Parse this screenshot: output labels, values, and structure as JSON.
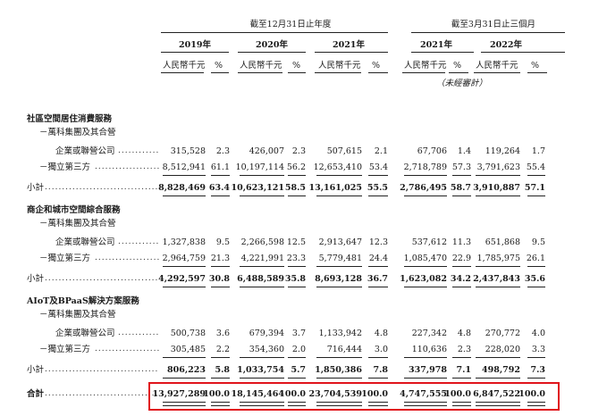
{
  "header": {
    "group_year": "截至12月31日止年度",
    "group_q": "截至3月31日止三個月",
    "years": [
      "2019年",
      "2020年",
      "2021年",
      "2021年",
      "2022年"
    ],
    "unit_rmb": "人民幣千元",
    "unit_pct": "%",
    "unaudited": "（未經審計）"
  },
  "sections": [
    {
      "title": "社區空間居住消費服務",
      "sub_label": "－萬科集團及其合營",
      "sub_label2": "企業或聯營公司",
      "row1": [
        "315,528",
        "2.3",
        "426,007",
        "2.3",
        "507,615",
        "2.1",
        "67,706",
        "1.4",
        "119,264",
        "1.7"
      ],
      "third_label": "－獨立第三方",
      "row2": [
        "8,512,941",
        "61.1",
        "10,197,114",
        "56.2",
        "12,653,410",
        "53.4",
        "2,718,789",
        "57.3",
        "3,791,623",
        "55.4"
      ],
      "subtotal_label": "小計",
      "subtotal": [
        "8,828,469",
        "63.4",
        "10,623,121",
        "58.5",
        "13,161,025",
        "55.5",
        "2,786,495",
        "58.7",
        "3,910,887",
        "57.1"
      ]
    },
    {
      "title": "商企和城市空間綜合服務",
      "sub_label": "－萬科集團及其合營",
      "sub_label2": "企業或聯營公司",
      "row1": [
        "1,327,838",
        "9.5",
        "2,266,598",
        "12.5",
        "2,913,647",
        "12.3",
        "537,612",
        "11.3",
        "651,868",
        "9.5"
      ],
      "third_label": "－獨立第三方",
      "row2": [
        "2,964,759",
        "21.3",
        "4,221,991",
        "23.3",
        "5,779,481",
        "24.4",
        "1,085,470",
        "22.9",
        "1,785,975",
        "26.1"
      ],
      "subtotal_label": "小計",
      "subtotal": [
        "4,292,597",
        "30.8",
        "6,488,589",
        "35.8",
        "8,693,128",
        "36.7",
        "1,623,082",
        "34.2",
        "2,437,843",
        "35.6"
      ]
    },
    {
      "title": "AIoT及BPaaS解決方案服務",
      "sub_label": "－萬科集團及其合營",
      "sub_label2": "企業或聯營公司",
      "row1": [
        "500,738",
        "3.6",
        "679,394",
        "3.7",
        "1,133,942",
        "4.8",
        "227,342",
        "4.8",
        "270,772",
        "4.0"
      ],
      "third_label": "－獨立第三方",
      "row2": [
        "305,485",
        "2.2",
        "354,360",
        "2.0",
        "716,444",
        "3.0",
        "110,636",
        "2.3",
        "228,020",
        "3.3"
      ],
      "subtotal_label": "小計",
      "subtotal": [
        "806,223",
        "5.8",
        "1,033,754",
        "5.7",
        "1,850,386",
        "7.8",
        "337,978",
        "7.1",
        "498,792",
        "7.3"
      ]
    }
  ],
  "total": {
    "label": "合計",
    "values": [
      "13,927,289",
      "100.0",
      "18,145,464",
      "100.0",
      "23,704,539",
      "100.0",
      "4,747,555",
      "100.0",
      "6,847,522",
      "100.0"
    ]
  },
  "highlight_color": "#e0141b"
}
